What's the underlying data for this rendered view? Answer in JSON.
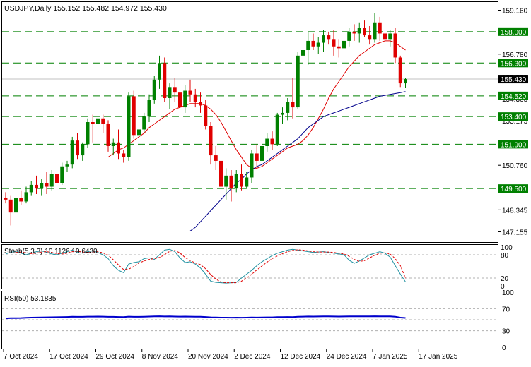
{
  "colors": {
    "frame": "#000000",
    "background": "#ffffff",
    "bull": "#008000",
    "bear": "#e00000",
    "ma_fast": "#e00000",
    "ma_slow": "#00008b",
    "sr_line": "#008000",
    "sr_label_bg": "#008000",
    "sr_label_text": "#ffffff",
    "current_price_bg": "#000000",
    "current_price_text": "#ffffff",
    "stoch_main": "#1e90a0",
    "stoch_signal": "#e00000",
    "rsi": "#0000cc",
    "level_line": "#b0b0b0"
  },
  "panels": {
    "main": {
      "title": "USDJPY,Daily  155.152 155.482 154.972 155.430"
    },
    "stoch": {
      "title": "Stoch(5,3,3) 10.1126 19.6430"
    },
    "rsi": {
      "title": "RSI(50) 53.1835"
    }
  },
  "chart_data": [
    {
      "type": "candlestick",
      "panel": "main",
      "symbol": "USDJPY",
      "timeframe": "Daily",
      "ohlc_last": {
        "open": 155.152,
        "high": 155.482,
        "low": 154.972,
        "close": 155.43
      },
      "ylim": [
        146.6,
        159.6
      ],
      "y_ticks": [
        "159.160",
        "156.780",
        "155.555",
        "154.365",
        "153.175",
        "150.760",
        "148.345",
        "147.155"
      ],
      "y_tick_values": [
        159.16,
        156.78,
        155.555,
        154.365,
        153.175,
        150.76,
        148.345,
        147.155
      ],
      "x_tick_labels": [
        "7 Oct 2024",
        "17 Oct 2024",
        "29 Oct 2024",
        "8 Nov 2024",
        "20 Nov 2024",
        "2 Dec 2024",
        "12 Dec 2024",
        "24 Dec 2024",
        "7 Jan 2025",
        "17 Jan 2025"
      ],
      "x_tick_index": [
        0,
        9,
        18,
        27,
        36,
        45,
        54,
        63,
        72,
        81
      ],
      "horizontal_levels": [
        {
          "label": "158.000",
          "value": 158.0
        },
        {
          "label": "156.300",
          "value": 156.3
        },
        {
          "label": "154.520",
          "value": 154.52
        },
        {
          "label": "153.400",
          "value": 153.4
        },
        {
          "label": "151.900",
          "value": 151.9
        },
        {
          "label": "149.500",
          "value": 149.5
        }
      ],
      "current_price_label": "155.430",
      "current_price": 155.43,
      "candles": [
        [
          149.0,
          149.3,
          148.7,
          148.9
        ],
        [
          148.9,
          149.1,
          147.5,
          148.2
        ],
        [
          148.2,
          149.2,
          148.1,
          149.0
        ],
        [
          149.0,
          149.4,
          148.6,
          148.8
        ],
        [
          148.8,
          149.6,
          148.7,
          149.3
        ],
        [
          149.3,
          149.9,
          149.1,
          149.7
        ],
        [
          149.7,
          150.2,
          149.2,
          149.5
        ],
        [
          149.5,
          150.0,
          149.1,
          149.8
        ],
        [
          149.8,
          150.4,
          149.2,
          149.6
        ],
        [
          149.6,
          150.5,
          149.4,
          150.3
        ],
        [
          150.3,
          150.9,
          149.6,
          149.8
        ],
        [
          149.8,
          150.9,
          149.7,
          150.7
        ],
        [
          150.7,
          151.0,
          150.4,
          150.8
        ],
        [
          150.8,
          152.3,
          150.6,
          152.1
        ],
        [
          152.1,
          152.5,
          151.1,
          151.3
        ],
        [
          151.3,
          152.0,
          151.0,
          151.9
        ],
        [
          151.9,
          153.3,
          151.7,
          153.1
        ],
        [
          153.1,
          153.5,
          152.0,
          153.0
        ],
        [
          153.0,
          153.6,
          152.4,
          153.3
        ],
        [
          153.3,
          153.5,
          152.5,
          153.0
        ],
        [
          153.0,
          153.2,
          151.5,
          151.8
        ],
        [
          151.8,
          152.2,
          151.3,
          152.0
        ],
        [
          152.0,
          152.7,
          151.1,
          151.4
        ],
        [
          151.4,
          151.6,
          150.9,
          151.2
        ],
        [
          151.2,
          154.7,
          151.0,
          154.5
        ],
        [
          154.5,
          154.8,
          152.2,
          152.4
        ],
        [
          152.4,
          152.9,
          152.0,
          152.7
        ],
        [
          152.7,
          153.6,
          152.5,
          153.4
        ],
        [
          153.4,
          154.6,
          153.1,
          154.3
        ],
        [
          154.3,
          155.6,
          154.1,
          155.4
        ],
        [
          155.4,
          156.7,
          154.9,
          156.3
        ],
        [
          156.3,
          156.6,
          154.2,
          154.4
        ],
        [
          154.4,
          155.2,
          153.8,
          155.0
        ],
        [
          155.0,
          155.5,
          154.2,
          154.7
        ],
        [
          154.7,
          155.0,
          153.5,
          153.9
        ],
        [
          153.9,
          155.1,
          153.6,
          154.8
        ],
        [
          154.8,
          155.4,
          154.2,
          154.6
        ],
        [
          154.6,
          154.9,
          153.9,
          154.2
        ],
        [
          154.2,
          154.7,
          153.6,
          154.0
        ],
        [
          154.0,
          154.3,
          152.7,
          152.9
        ],
        [
          152.9,
          153.1,
          150.8,
          151.3
        ],
        [
          151.3,
          151.8,
          150.5,
          151.0
        ],
        [
          151.0,
          151.4,
          149.3,
          149.6
        ],
        [
          149.6,
          150.6,
          148.9,
          150.2
        ],
        [
          150.2,
          150.5,
          148.8,
          149.5
        ],
        [
          149.5,
          150.5,
          149.3,
          150.3
        ],
        [
          150.3,
          150.8,
          149.4,
          149.6
        ],
        [
          149.6,
          150.4,
          149.5,
          150.1
        ],
        [
          150.1,
          151.6,
          149.8,
          151.4
        ],
        [
          151.4,
          151.9,
          150.6,
          151.0
        ],
        [
          151.0,
          152.1,
          150.8,
          151.8
        ],
        [
          151.8,
          152.5,
          151.5,
          152.2
        ],
        [
          152.2,
          152.6,
          151.6,
          151.9
        ],
        [
          151.9,
          153.6,
          151.8,
          153.5
        ],
        [
          153.5,
          153.9,
          153.0,
          153.6
        ],
        [
          153.6,
          154.4,
          153.2,
          154.2
        ],
        [
          154.2,
          155.5,
          153.3,
          153.9
        ],
        [
          153.9,
          156.9,
          153.8,
          156.7
        ],
        [
          156.7,
          157.2,
          156.2,
          157.0
        ],
        [
          157.0,
          158.0,
          156.2,
          157.5
        ],
        [
          157.5,
          157.9,
          157.0,
          157.2
        ],
        [
          157.2,
          157.7,
          156.8,
          157.4
        ],
        [
          157.4,
          158.1,
          156.9,
          157.8
        ],
        [
          157.8,
          158.0,
          157.3,
          157.6
        ],
        [
          157.6,
          158.1,
          156.7,
          157.2
        ],
        [
          157.2,
          157.6,
          156.6,
          157.1
        ],
        [
          157.1,
          157.8,
          156.9,
          157.5
        ],
        [
          157.5,
          158.2,
          157.2,
          158.0
        ],
        [
          158.0,
          158.4,
          157.5,
          157.9
        ],
        [
          157.9,
          158.5,
          157.4,
          158.2
        ],
        [
          158.2,
          158.6,
          157.7,
          157.8
        ],
        [
          157.8,
          158.3,
          157.3,
          157.6
        ],
        [
          157.6,
          159.0,
          157.4,
          158.5
        ],
        [
          158.5,
          158.8,
          157.5,
          157.9
        ],
        [
          157.9,
          158.3,
          157.3,
          157.6
        ],
        [
          157.6,
          158.1,
          157.2,
          157.9
        ],
        [
          157.9,
          158.2,
          156.3,
          156.6
        ],
        [
          156.6,
          156.7,
          155.0,
          155.2
        ],
        [
          155.2,
          155.48,
          154.97,
          155.43
        ]
      ],
      "series": [
        {
          "name": "",
          "kind": "ma_fast",
          "values": [
            null,
            null,
            null,
            null,
            null,
            null,
            null,
            null,
            null,
            null,
            null,
            null,
            null,
            null,
            null,
            null,
            null,
            null,
            null,
            null,
            151.2,
            151.4,
            151.6,
            151.7,
            151.9,
            152.1,
            152.3,
            152.5,
            152.8,
            153.0,
            153.2,
            153.4,
            153.6,
            153.8,
            153.9,
            154.0,
            154.1,
            154.1,
            154.1,
            154.0,
            153.8,
            153.5,
            153.1,
            152.6,
            152.1,
            151.6,
            151.2,
            150.8,
            150.6,
            150.6,
            150.7,
            150.9,
            151.1,
            151.3,
            151.5,
            151.7,
            151.8,
            151.9,
            152.1,
            152.4,
            152.8,
            153.3,
            153.8,
            154.4,
            154.9,
            155.3,
            155.7,
            156.1,
            156.4,
            156.7,
            156.9,
            157.1,
            157.3,
            157.4,
            157.5,
            157.5,
            157.4,
            157.2,
            157.0
          ]
        },
        {
          "name": "",
          "kind": "ma_slow",
          "values": [
            null,
            null,
            null,
            null,
            null,
            null,
            null,
            null,
            null,
            null,
            null,
            null,
            null,
            null,
            null,
            null,
            null,
            null,
            null,
            null,
            null,
            null,
            null,
            null,
            null,
            null,
            null,
            null,
            null,
            null,
            null,
            null,
            null,
            null,
            null,
            null,
            147.2,
            147.4,
            147.7,
            148.0,
            148.3,
            148.6,
            148.9,
            149.2,
            149.5,
            149.8,
            150.0,
            150.3,
            150.5,
            150.7,
            150.8,
            151.0,
            151.2,
            151.4,
            151.6,
            151.8,
            152.0,
            152.2,
            152.5,
            152.8,
            153.0,
            153.2,
            153.4,
            153.5,
            153.6,
            153.7,
            153.8,
            153.9,
            154.0,
            154.1,
            154.2,
            154.3,
            154.4,
            154.5,
            154.55,
            154.6,
            154.65,
            154.7,
            154.75
          ]
        }
      ]
    },
    {
      "type": "line",
      "panel": "stoch",
      "indicator": "Stochastic",
      "ylim": [
        0,
        100
      ],
      "y_ticks": [
        "100",
        "80",
        "20",
        "0"
      ],
      "y_tick_values": [
        100,
        80,
        20,
        0
      ],
      "levels": [
        80,
        20
      ],
      "series": [
        {
          "name": "",
          "kind": "stoch_main",
          "values": [
            82,
            86,
            90,
            84,
            80,
            84,
            88,
            90,
            86,
            82,
            80,
            84,
            88,
            92,
            86,
            84,
            88,
            90,
            86,
            80,
            70,
            52,
            40,
            34,
            56,
            60,
            62,
            70,
            72,
            68,
            80,
            92,
            94,
            88,
            72,
            60,
            62,
            56,
            46,
            30,
            12,
            9,
            8,
            7,
            8,
            9,
            20,
            30,
            40,
            52,
            62,
            70,
            78,
            84,
            88,
            92,
            94,
            92,
            90,
            88,
            86,
            87,
            88,
            86,
            84,
            82,
            80,
            66,
            58,
            64,
            72,
            80,
            84,
            88,
            84,
            74,
            52,
            30,
            10.1
          ]
        },
        {
          "name": "",
          "kind": "stoch_signal",
          "values": [
            null,
            null,
            86,
            87,
            85,
            83,
            84,
            87,
            88,
            86,
            83,
            82,
            84,
            88,
            89,
            87,
            86,
            87,
            88,
            85,
            79,
            67,
            54,
            42,
            43,
            50,
            59,
            64,
            68,
            70,
            73,
            80,
            89,
            91,
            85,
            73,
            65,
            59,
            55,
            44,
            29,
            17,
            10,
            8,
            8,
            8,
            12,
            20,
            30,
            41,
            51,
            61,
            70,
            77,
            83,
            88,
            91,
            93,
            92,
            90,
            88,
            87,
            87,
            87,
            86,
            84,
            82,
            76,
            68,
            63,
            65,
            72,
            79,
            84,
            85,
            82,
            70,
            52,
            19.6
          ]
        }
      ]
    },
    {
      "type": "line",
      "panel": "rsi",
      "indicator": "RSI",
      "ylim": [
        0,
        100
      ],
      "y_ticks": [
        "100",
        "70",
        "30",
        "0"
      ],
      "y_tick_values": [
        100,
        70,
        30,
        0
      ],
      "levels": [
        70,
        50,
        30
      ],
      "series": [
        {
          "name": "",
          "kind": "rsi",
          "values": [
            52.5,
            52.8,
            53.0,
            53.1,
            53.4,
            53.8,
            54.0,
            54.2,
            54.3,
            54.5,
            54.6,
            54.8,
            55.0,
            55.4,
            55.2,
            55.3,
            55.6,
            55.7,
            55.8,
            55.6,
            55.2,
            55.2,
            55.0,
            54.9,
            55.6,
            55.2,
            55.3,
            55.5,
            55.8,
            56.0,
            56.3,
            55.9,
            56.0,
            55.8,
            55.6,
            55.8,
            55.7,
            55.5,
            55.4,
            55.0,
            54.4,
            54.2,
            53.8,
            53.9,
            53.7,
            53.9,
            53.7,
            53.8,
            54.1,
            54.0,
            54.2,
            54.4,
            54.3,
            54.7,
            54.8,
            55.0,
            54.9,
            55.5,
            55.7,
            55.9,
            55.8,
            55.9,
            56.0,
            56.0,
            55.9,
            55.8,
            55.9,
            56.1,
            56.0,
            56.1,
            56.0,
            56.0,
            56.3,
            56.1,
            56.0,
            56.1,
            55.5,
            53.9,
            53.2
          ]
        }
      ]
    }
  ]
}
